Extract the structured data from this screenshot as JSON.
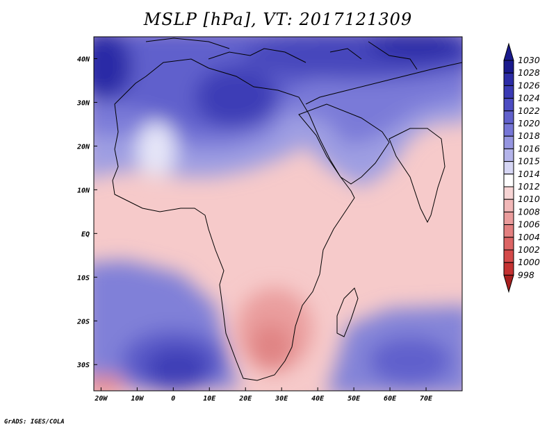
{
  "title": "MSLP [hPa], VT: 2017121309",
  "credit": "GrADS: IGES/COLA",
  "map": {
    "lon_range": [
      -22,
      80
    ],
    "lat_range": [
      -36,
      45
    ],
    "lon_ticks": [
      {
        "lon": -20,
        "label": "20W"
      },
      {
        "lon": -10,
        "label": "10W"
      },
      {
        "lon": 0,
        "label": "0"
      },
      {
        "lon": 10,
        "label": "10E"
      },
      {
        "lon": 20,
        "label": "20E"
      },
      {
        "lon": 30,
        "label": "30E"
      },
      {
        "lon": 40,
        "label": "40E"
      },
      {
        "lon": 50,
        "label": "50E"
      },
      {
        "lon": 60,
        "label": "60E"
      },
      {
        "lon": 70,
        "label": "70E"
      }
    ],
    "lat_ticks": [
      {
        "lat": 40,
        "label": "40N"
      },
      {
        "lat": 30,
        "label": "30N"
      },
      {
        "lat": 20,
        "label": "20N"
      },
      {
        "lat": 10,
        "label": "10N"
      },
      {
        "lat": 0,
        "label": "EQ"
      },
      {
        "lat": -10,
        "label": "10S"
      },
      {
        "lat": -20,
        "label": "20S"
      },
      {
        "lat": -30,
        "label": "30S"
      }
    ]
  },
  "colorbar": {
    "levels": [
      "1030",
      "1028",
      "1026",
      "1024",
      "1022",
      "1020",
      "1018",
      "1016",
      "1015",
      "1014",
      "1012",
      "1010",
      "1008",
      "1006",
      "1004",
      "1002",
      "1000",
      "998"
    ],
    "colors": [
      "#1a1a8c",
      "#2c2ca6",
      "#3a3ab4",
      "#4c4cc2",
      "#6161cc",
      "#7676d6",
      "#9595e0",
      "#b4b4ea",
      "#d6d6f4",
      "#ffffff",
      "#f7d4d4",
      "#f2b8b8",
      "#ea9c9c",
      "#e38080",
      "#dc6464",
      "#d44a4a",
      "#c43232",
      "#a81f1f"
    ]
  }
}
